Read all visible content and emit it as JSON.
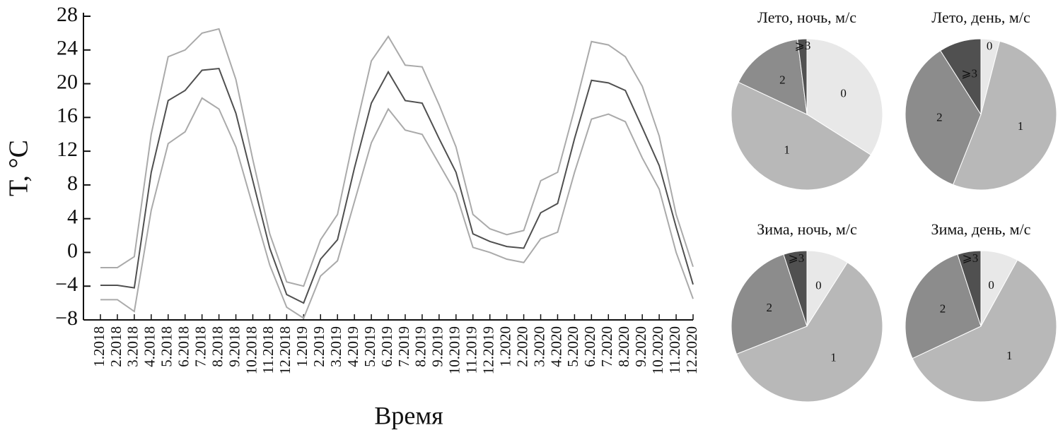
{
  "chart_data": [
    {
      "type": "line",
      "y_label": "T, °C",
      "x_label": "Время",
      "categories": [
        "1.2018",
        "2.2018",
        "3.2018",
        "4.2018",
        "5.2018",
        "6.2018",
        "7.2018",
        "8.2018",
        "9.2018",
        "10.2018",
        "11.2018",
        "12.2018",
        "1.2019",
        "2.2019",
        "3.2019",
        "4.2019",
        "5.2019",
        "6.2019",
        "7.2019",
        "8.2019",
        "9.2019",
        "10.2019",
        "11.2019",
        "12.2019",
        "1.2020",
        "2.2020",
        "3.2020",
        "4.2020",
        "5.2020",
        "6.2020",
        "7.2020",
        "8.2020",
        "9.2020",
        "10.2020",
        "11.2020",
        "12.2020"
      ],
      "series": [
        {
          "color": "#aaaaaa",
          "values": [
            -1.8,
            -1.8,
            -0.5,
            14,
            23.2,
            24,
            26,
            26.5,
            20.5,
            11,
            2.2,
            -3.5,
            -4,
            1.5,
            4.5,
            14,
            22.7,
            25.6,
            22.2,
            22,
            17.5,
            12.5,
            4.5,
            2.8,
            2.1,
            2.6,
            8.5,
            9.5,
            17,
            25,
            24.6,
            23.2,
            19.7,
            13.8,
            4.5,
            -1.7
          ]
        },
        {
          "color": "#505050",
          "values": [
            -3.9,
            -3.9,
            -4.2,
            9.5,
            18,
            19.2,
            21.6,
            21.8,
            16.5,
            8.5,
            0.5,
            -5,
            -6,
            -0.8,
            1.5,
            10,
            17.7,
            21.4,
            18,
            17.7,
            13.5,
            9.5,
            2.2,
            1.3,
            0.7,
            0.5,
            4.7,
            5.8,
            13.5,
            20.4,
            20.1,
            19.2,
            14.8,
            10.3,
            3,
            -3.8
          ]
        },
        {
          "color": "#aaaaaa",
          "values": [
            -5.6,
            -5.6,
            -7,
            5,
            12.9,
            14.3,
            18.3,
            17,
            12.5,
            5.5,
            -1.5,
            -6.5,
            -7.8,
            -2.8,
            -1,
            6,
            13,
            17,
            14.5,
            14,
            10.5,
            7,
            0.6,
            0,
            -0.8,
            -1.2,
            1.6,
            2.4,
            9.5,
            15.8,
            16.4,
            15.5,
            11.2,
            7.5,
            0,
            -5.5
          ]
        }
      ],
      "ylim": [
        -8,
        28
      ],
      "yticks": [
        {
          "value": -8,
          "label": "−8"
        },
        {
          "value": -4,
          "label": "−4"
        },
        0,
        4,
        8,
        12,
        16,
        20,
        24,
        28
      ]
    },
    {
      "type": "pie",
      "title": "Лето, ночь, м/с",
      "categories": [
        "0",
        "1",
        "2",
        "⩾3"
      ],
      "values": [
        34,
        48,
        16,
        2
      ],
      "colors": [
        "#e8e8e8",
        "#b8b8b8",
        "#8c8c8c",
        "#505050"
      ]
    },
    {
      "type": "pie",
      "title": "Лето, день, м/с",
      "categories": [
        "0",
        "1",
        "2",
        "⩾3"
      ],
      "values": [
        4,
        52,
        35,
        9
      ],
      "colors": [
        "#e8e8e8",
        "#b8b8b8",
        "#8c8c8c",
        "#505050"
      ]
    },
    {
      "type": "pie",
      "title": "Зима, ночь, м/с",
      "categories": [
        "0",
        "1",
        "2",
        "⩾3"
      ],
      "values": [
        9,
        60,
        26,
        5
      ],
      "colors": [
        "#e8e8e8",
        "#b8b8b8",
        "#8c8c8c",
        "#505050"
      ]
    },
    {
      "type": "pie",
      "title": "Зима, день, м/с",
      "categories": [
        "0",
        "1",
        "2",
        "⩾3"
      ],
      "values": [
        8,
        60,
        27,
        5
      ],
      "colors": [
        "#e8e8e8",
        "#b8b8b8",
        "#8c8c8c",
        "#505050"
      ]
    }
  ]
}
